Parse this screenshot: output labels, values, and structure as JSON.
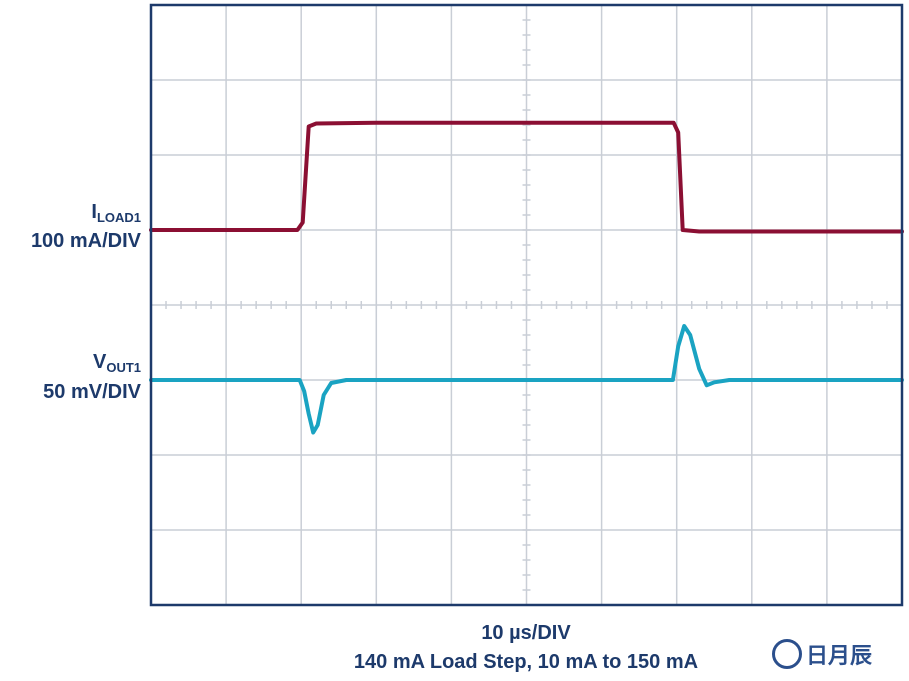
{
  "chart_data": {
    "type": "line",
    "title": "",
    "xlabel": "10 µs/DIV",
    "caption": "140 mA Load Step, 10 mA to 150 mA",
    "x_divisions": 10,
    "y_divisions": 8,
    "grid": true,
    "series": [
      {
        "label_main": "I",
        "label_sub": "LOAD1",
        "label_scale": "100 mA/DIV",
        "color": "#8b0f33",
        "x_unit": "div",
        "y_unit": "div",
        "points": [
          [
            0,
            5
          ],
          [
            1.95,
            5
          ],
          [
            2.02,
            5.1
          ],
          [
            2.1,
            6.38
          ],
          [
            2.2,
            6.42
          ],
          [
            3,
            6.43
          ],
          [
            5,
            6.43
          ],
          [
            6.96,
            6.43
          ],
          [
            7.02,
            6.3
          ],
          [
            7.08,
            5.0
          ],
          [
            7.3,
            4.98
          ],
          [
            8,
            4.98
          ],
          [
            10,
            4.98
          ]
        ]
      },
      {
        "label_main": "V",
        "label_sub": "OUT1",
        "label_scale": "50 mV/DIV",
        "color": "#1aa3c2",
        "x_unit": "div",
        "y_unit": "div",
        "points": [
          [
            0,
            3
          ],
          [
            1.98,
            3
          ],
          [
            2.04,
            2.85
          ],
          [
            2.1,
            2.55
          ],
          [
            2.16,
            2.3
          ],
          [
            2.22,
            2.4
          ],
          [
            2.3,
            2.8
          ],
          [
            2.4,
            2.96
          ],
          [
            2.6,
            3.0
          ],
          [
            5,
            3.0
          ],
          [
            6.95,
            3.0
          ],
          [
            7.02,
            3.45
          ],
          [
            7.1,
            3.72
          ],
          [
            7.18,
            3.6
          ],
          [
            7.3,
            3.15
          ],
          [
            7.4,
            2.93
          ],
          [
            7.5,
            2.97
          ],
          [
            7.7,
            3.0
          ],
          [
            10,
            3.0
          ]
        ]
      }
    ]
  },
  "watermark": "日月辰"
}
